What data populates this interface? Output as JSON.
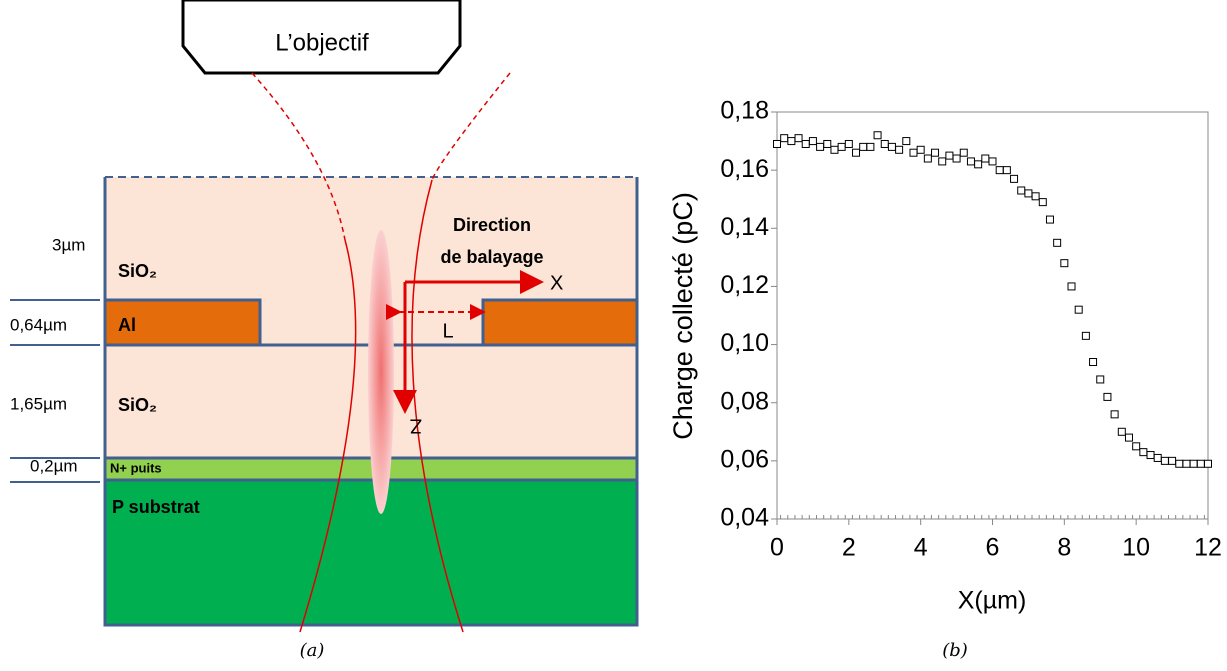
{
  "diagram": {
    "objective": "L’objectif",
    "direction_line1": "Direction",
    "direction_line2": "de balayage",
    "axis_x": "X",
    "axis_z": "Z",
    "length": "L",
    "layers": [
      {
        "thickness": "3µm",
        "label": "SiO₂"
      },
      {
        "thickness": "0,64µm",
        "label": "Al"
      },
      {
        "thickness": "1,65µm",
        "label": "SiO₂"
      },
      {
        "thickness": "0,2µm",
        "label": "N+ puits"
      },
      {
        "label": "P substrat"
      }
    ]
  },
  "captions": [
    "(a)",
    "(b)"
  ],
  "chart_data": {
    "type": "scatter",
    "ylabel": "Charge collecté (pC)",
    "xlabel": "X(µm)",
    "color": "#000000",
    "x": [
      0,
      0.2,
      0.4,
      0.6,
      0.8,
      1.0,
      1.2,
      1.4,
      1.6,
      1.8,
      2.0,
      2.2,
      2.4,
      2.6,
      2.8,
      3.0,
      3.2,
      3.4,
      3.6,
      3.8,
      4.0,
      4.2,
      4.4,
      4.6,
      4.8,
      5.0,
      5.2,
      5.4,
      5.6,
      5.8,
      6.0,
      6.2,
      6.4,
      6.6,
      6.8,
      7.0,
      7.2,
      7.4,
      7.6,
      7.8,
      8.0,
      8.2,
      8.4,
      8.6,
      8.8,
      9.0,
      9.2,
      9.4,
      9.6,
      9.8,
      10.0,
      10.2,
      10.4,
      10.6,
      10.8,
      11.0,
      11.2,
      11.4,
      11.6,
      11.8,
      12.0
    ],
    "values": [
      0.169,
      0.171,
      0.17,
      0.171,
      0.169,
      0.17,
      0.168,
      0.169,
      0.167,
      0.168,
      0.169,
      0.166,
      0.168,
      0.168,
      0.172,
      0.169,
      0.168,
      0.167,
      0.17,
      0.166,
      0.167,
      0.164,
      0.166,
      0.163,
      0.165,
      0.164,
      0.166,
      0.163,
      0.162,
      0.164,
      0.163,
      0.16,
      0.16,
      0.157,
      0.153,
      0.152,
      0.151,
      0.149,
      0.143,
      0.135,
      0.128,
      0.12,
      0.112,
      0.103,
      0.094,
      0.088,
      0.082,
      0.076,
      0.07,
      0.068,
      0.065,
      0.063,
      0.062,
      0.061,
      0.06,
      0.06,
      0.059,
      0.059,
      0.059,
      0.059,
      0.059
    ],
    "xlim": [
      0,
      12
    ],
    "xticks": [
      0,
      2,
      4,
      6,
      8,
      10,
      12
    ],
    "ylim": [
      0.04,
      0.18
    ],
    "yticks": [
      {
        "value": 0.04,
        "label": "0,04"
      },
      {
        "value": 0.06,
        "label": "0,06"
      },
      {
        "value": 0.08,
        "label": "0,08"
      },
      {
        "value": 0.1,
        "label": "0,10"
      },
      {
        "value": 0.12,
        "label": "0,12"
      },
      {
        "value": 0.14,
        "label": "0,14"
      },
      {
        "value": 0.16,
        "label": "0,16"
      },
      {
        "value": 0.18,
        "label": "0,18"
      }
    ]
  }
}
